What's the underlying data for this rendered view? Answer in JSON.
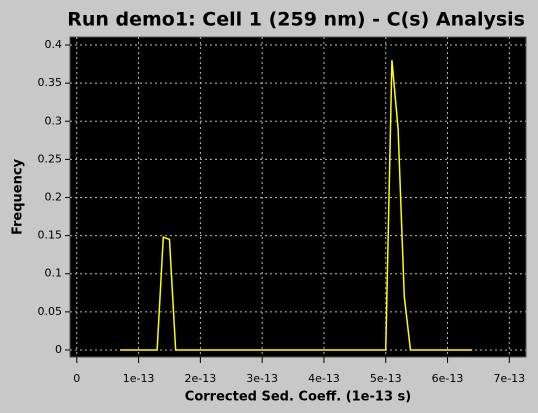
{
  "chart_data": {
    "type": "line",
    "title": "Run demo1: Cell 1 (259 nm) - C(s) Analysis",
    "x_label": "Corrected Sed. Coeff. (1e-13 s)",
    "y_label": "Frequency",
    "x": [
      7e-14,
      1.3e-13,
      1.4e-13,
      1.5e-13,
      1.6e-13,
      5e-13,
      5.1e-13,
      5.2e-13,
      5.3e-13,
      5.4e-13,
      6.4e-13
    ],
    "series": [
      {
        "color": "#ffff00",
        "values": [
          0,
          0,
          0.148,
          0.145,
          0,
          0,
          0.38,
          0.29,
          0.07,
          0,
          0
        ]
      }
    ],
    "xlim": [
      -1.1e-14,
      7.27e-13
    ],
    "ylim": [
      -0.0092,
      0.4105
    ],
    "xticks": [
      0,
      1e-13,
      2e-13,
      3e-13,
      4e-13,
      5e-13,
      6e-13,
      7e-13
    ],
    "yticks": [
      0,
      0.05,
      0.1,
      0.15,
      0.2,
      0.25,
      0.3,
      0.35,
      0.4
    ],
    "grid": true,
    "background": "#000000"
  }
}
